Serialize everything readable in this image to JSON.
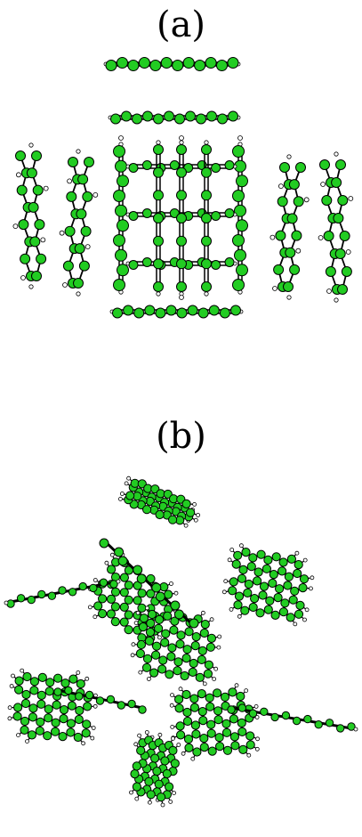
{
  "panels": [
    {
      "label": "(a)"
    },
    {
      "label": "(b)"
    }
  ],
  "colors": {
    "carbon_fill": "#22cc22",
    "hydrogen_fill": "#ffffff",
    "atom_stroke": "#000000",
    "bond": "#000000",
    "background": "#ffffff"
  }
}
